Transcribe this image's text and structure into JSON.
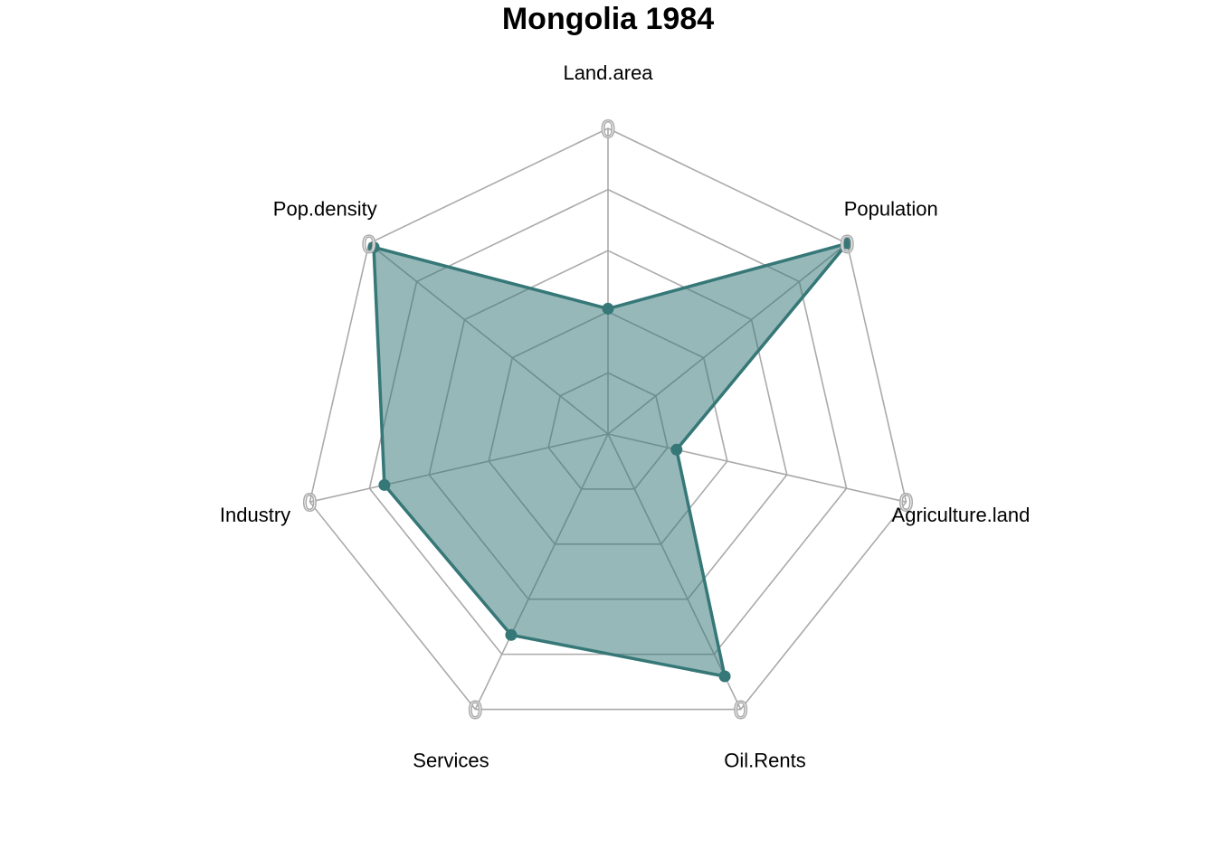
{
  "chart_data": {
    "type": "radar",
    "title": "Mongolia 1984",
    "axes": [
      "Land.area",
      "Population",
      "Agriculture.land",
      "Oil.Rents",
      "Services",
      "Industry",
      "Pop.density"
    ],
    "ring_labels": [
      "0",
      "0",
      "0",
      "0",
      "0",
      "0",
      "0"
    ],
    "range": [
      0,
      1
    ],
    "grid_levels": 5,
    "series": [
      {
        "values": [
          0.41,
          1.0,
          0.23,
          0.88,
          0.73,
          0.75,
          0.98
        ]
      }
    ],
    "colors": {
      "line": "#367777",
      "fill": "#367777",
      "fill_opacity": 0.52,
      "grid": "#aaaaaa"
    }
  }
}
